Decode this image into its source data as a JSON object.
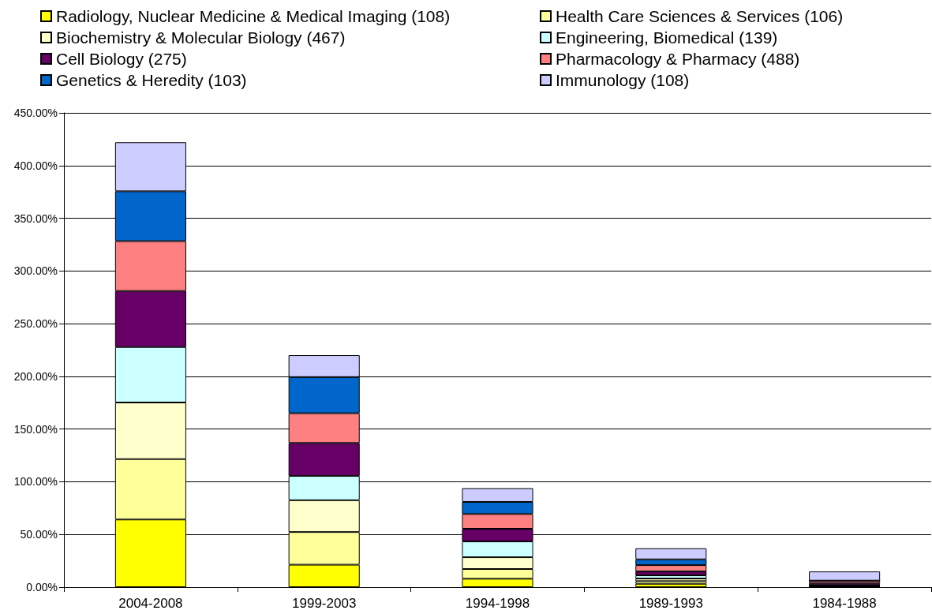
{
  "chart_data": {
    "type": "bar",
    "stacked": true,
    "categories": [
      "2004-2008",
      "1999-2003",
      "1994-1998",
      "1989-1993",
      "1984-1988"
    ],
    "series": [
      {
        "name": "Radiology, Nuclear Medicine & Medical Imaging (108)",
        "color": "#ffff00",
        "values": [
          64.2,
          21.3,
          8.0,
          3.2,
          0.5
        ]
      },
      {
        "name": "Health Care Sciences & Services (106)",
        "color": "#ffff99",
        "values": [
          57.3,
          31.0,
          9.2,
          2.5,
          0.5
        ]
      },
      {
        "name": "Biochemistry & Molecular Biology (467)",
        "color": "#ffffcc",
        "values": [
          53.7,
          30.2,
          11.2,
          2.5,
          0.5
        ]
      },
      {
        "name": "Engineering, Biomedical (139)",
        "color": "#ccffff",
        "values": [
          52.6,
          23.0,
          15.0,
          3.0,
          0.5
        ]
      },
      {
        "name": "Cell Biology (275)",
        "color": "#660066",
        "values": [
          53.2,
          31.3,
          12.0,
          3.7,
          2.0
        ]
      },
      {
        "name": "Pharmacology & Pharmacy (488)",
        "color": "#ff8080",
        "values": [
          47.3,
          28.2,
          14.0,
          6.0,
          2.2
        ]
      },
      {
        "name": "Genetics & Heredity (103)",
        "color": "#0066cc",
        "values": [
          47.3,
          34.3,
          11.5,
          5.5,
          0
        ]
      },
      {
        "name": "Immunology (108)",
        "color": "#ccccff",
        "values": [
          46.5,
          20.8,
          13.0,
          10.5,
          8.7
        ]
      }
    ],
    "ylim": [
      0,
      450
    ],
    "yticks": [
      {
        "value": 0,
        "label": "0.00%"
      },
      {
        "value": 50,
        "label": "50.00%"
      },
      {
        "value": 100,
        "label": "100.00%"
      },
      {
        "value": 150,
        "label": "150.00%"
      },
      {
        "value": 200,
        "label": "200.00%"
      },
      {
        "value": 250,
        "label": "250.00%"
      },
      {
        "value": 300,
        "label": "300.00%"
      },
      {
        "value": 350,
        "label": "350.00%"
      },
      {
        "value": 400,
        "label": "400.00%"
      },
      {
        "value": 450,
        "label": "450.00%"
      }
    ],
    "grid": "y",
    "legend": "top"
  }
}
